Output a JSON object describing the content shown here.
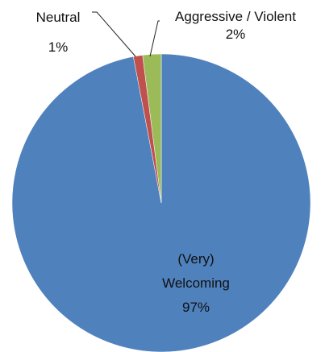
{
  "chart_data": {
    "type": "pie",
    "title": "",
    "slices": [
      {
        "label_lines": [
          "(Very)",
          "Welcoming"
        ],
        "value": 97,
        "pct_label": "97%",
        "color": "#4f81bd"
      },
      {
        "label_lines": [
          "Neutral"
        ],
        "value": 1,
        "pct_label": "1%",
        "color": "#c0504d"
      },
      {
        "label_lines": [
          "Aggressive / Violent"
        ],
        "value": 2,
        "pct_label": "2%",
        "color": "#9bbb59"
      }
    ],
    "legend": "none"
  }
}
